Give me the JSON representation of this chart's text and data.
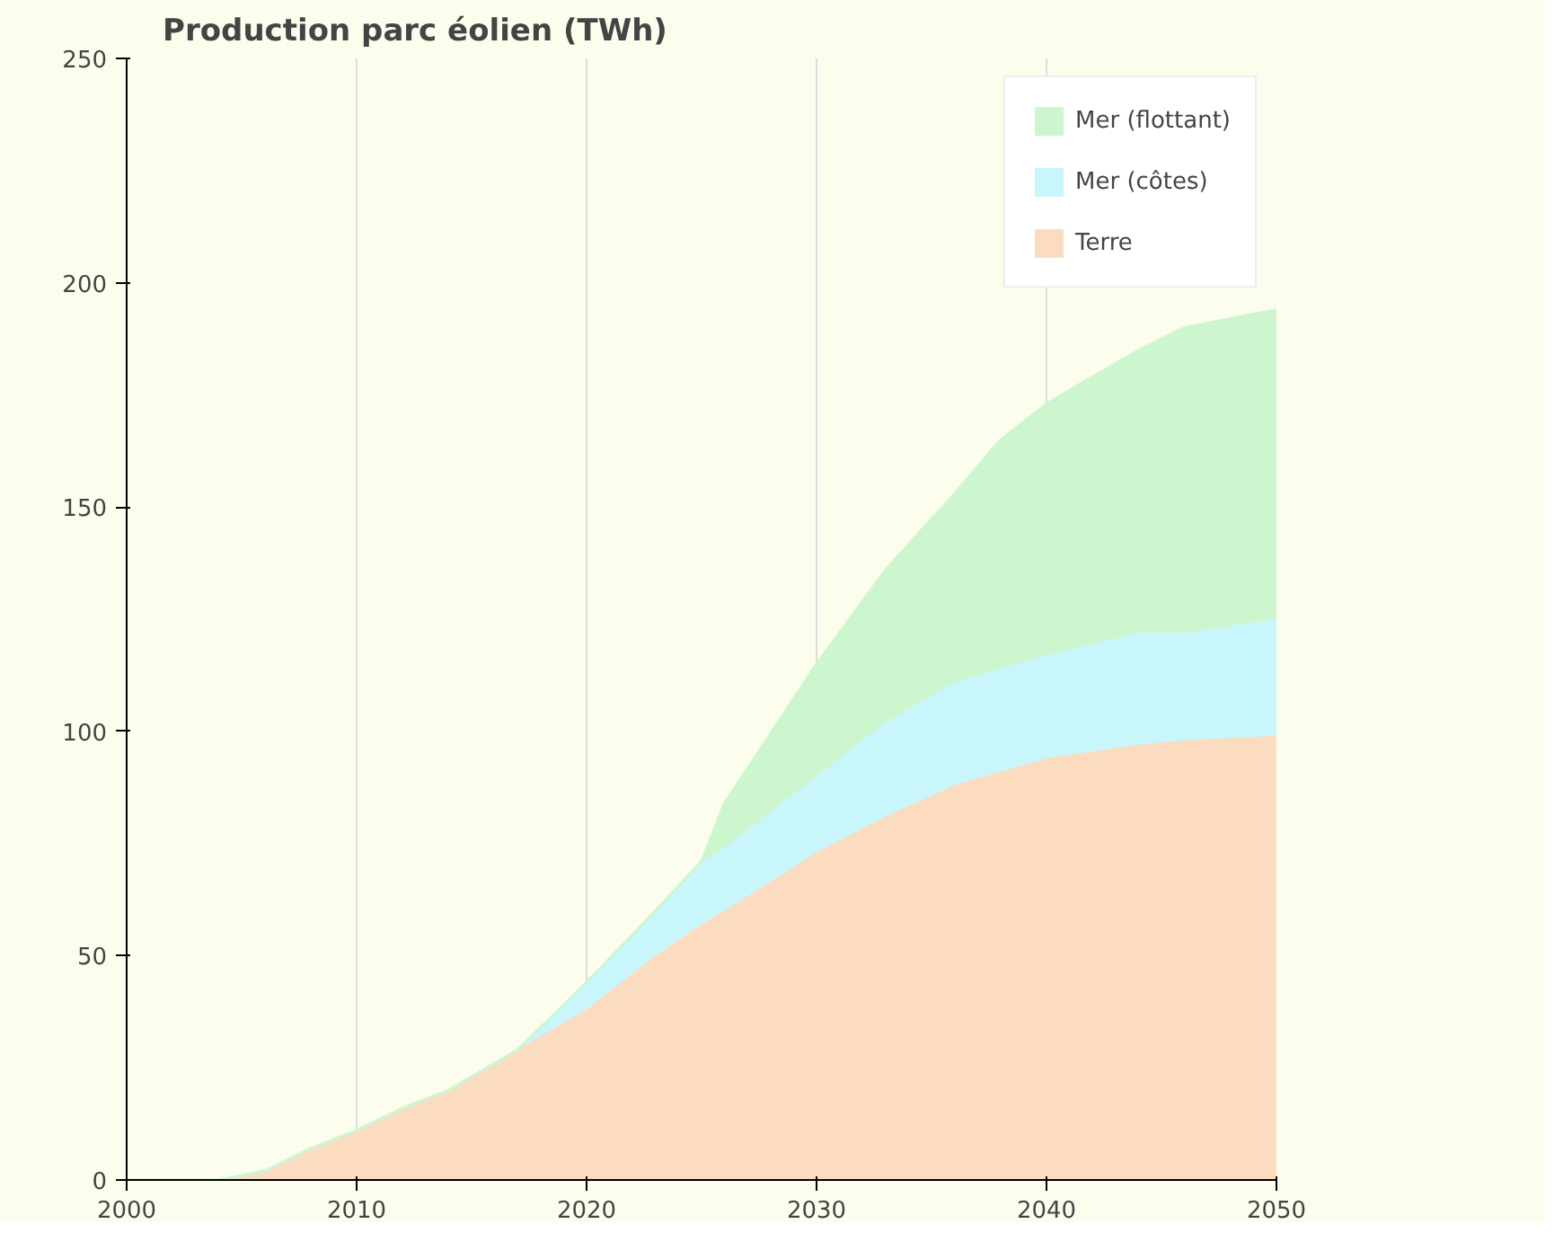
{
  "chart_data": {
    "type": "area",
    "stacked": true,
    "title": "Production parc éolien (TWh)",
    "x": [
      2000,
      2004,
      2005,
      2006,
      2008,
      2010,
      2012,
      2014,
      2017,
      2020,
      2023,
      2025,
      2026,
      2030,
      2033,
      2036,
      2038,
      2040,
      2044,
      2046,
      2050
    ],
    "series": [
      {
        "name": "Terre",
        "color": "#fbdcc0",
        "values": [
          0,
          0,
          1,
          2,
          7,
          11,
          16,
          20,
          29,
          38,
          50,
          57,
          60,
          73,
          81,
          88,
          91,
          94,
          97,
          98,
          99
        ]
      },
      {
        "name": "Mer (côtes)",
        "color": "#c9f6fb",
        "values": [
          0,
          0,
          0,
          0,
          0,
          0,
          0,
          0,
          0,
          6,
          10,
          14,
          14,
          17,
          21,
          23,
          23,
          23,
          25,
          24,
          26
        ]
      },
      {
        "name": "Mer (flottant)",
        "color": "#cdf6cf",
        "values": [
          0,
          0,
          0,
          0,
          0,
          0,
          0,
          0,
          0,
          0,
          0,
          0,
          10,
          25,
          34,
          42,
          51,
          56,
          63,
          68,
          69
        ]
      }
    ],
    "xlim": [
      2000,
      2050
    ],
    "xticks": [
      2000,
      2010,
      2020,
      2030,
      2040,
      2050
    ],
    "ylim": [
      0,
      250
    ],
    "yticks": [
      0,
      50,
      100,
      150,
      200,
      250
    ],
    "grid": "x",
    "legend": "top right"
  }
}
